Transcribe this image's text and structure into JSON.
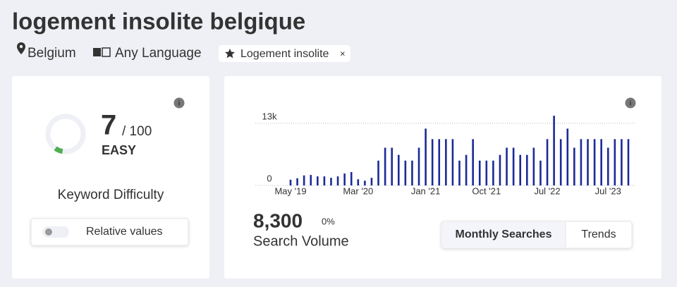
{
  "header": {
    "title": "logement insolite belgique",
    "filters": [
      "Belgium",
      "Any Language",
      "Logement insolite"
    ]
  },
  "difficulty": {
    "score": 7,
    "max": {
      "value": 100,
      "label": "/ 100"
    },
    "level": "EASY",
    "label": "Keyword Difficulty",
    "toggle": "Relative values"
  },
  "volume": {
    "value": "8,300",
    "change": "0%",
    "label": "Search Volume",
    "tabs": [
      "Monthly Searches",
      "Trends"
    ]
  },
  "chart": {
    "type": "bar",
    "color": "#1c2a96",
    "categories": [
      "May '19",
      null,
      null,
      null,
      null,
      null,
      null,
      null,
      null,
      null,
      "Mar '20",
      null,
      null,
      null,
      null,
      null,
      null,
      null,
      null,
      null,
      "Jan '21",
      null,
      null,
      null,
      null,
      null,
      null,
      null,
      null,
      "Oct '21",
      null,
      null,
      null,
      null,
      null,
      null,
      null,
      null,
      "Jul '22",
      null,
      null,
      null,
      null,
      null,
      null,
      null,
      null,
      "Jul '23",
      null,
      null,
      null
    ],
    "values": [
      1200,
      1500,
      2100,
      2200,
      1900,
      1900,
      1600,
      1900,
      2500,
      2800,
      1300,
      1000,
      1600,
      5200,
      7900,
      7900,
      6400,
      5200,
      5200,
      7900,
      11900,
      9700,
      9700,
      9700,
      9700,
      5200,
      6400,
      9700,
      5200,
      5200,
      5200,
      6400,
      7900,
      7900,
      6400,
      6400,
      7900,
      5200,
      9700,
      14600,
      9700,
      11900,
      7900,
      9700,
      9700,
      9700,
      9700,
      7900,
      9700,
      9700,
      9700
    ],
    "ylim": [
      0,
      15500
    ],
    "yticks": [
      0,
      {
        "value": 13000,
        "label": "13k"
      }
    ],
    "grid": true
  }
}
